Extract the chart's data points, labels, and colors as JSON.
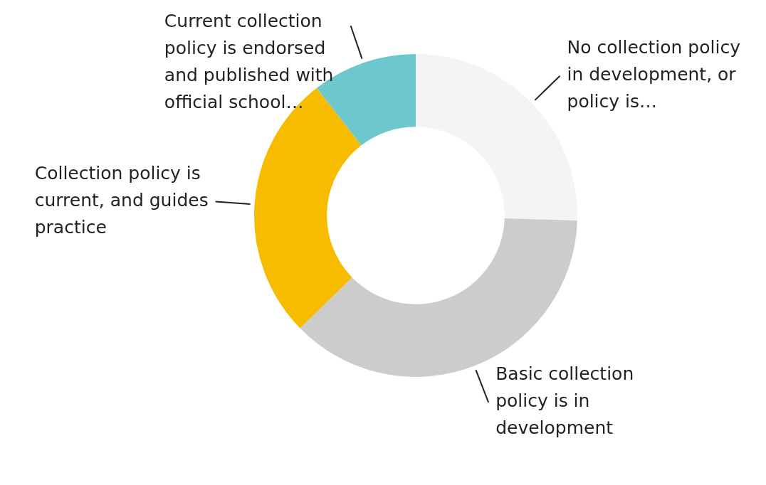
{
  "chart_data": {
    "type": "donut",
    "categories": [
      "No collection policy in development, or policy is…",
      "Basic collection policy is in development",
      "Collection policy is current, and guides practice",
      "Current collection policy is endorsed and published with official school…"
    ],
    "values": [
      25.5,
      37.2,
      26.8,
      10.5
    ],
    "colors": [
      "#f3f4f4",
      "#cccccc",
      "#f7bc00",
      "#6cc8cc"
    ],
    "legend": false
  }
}
